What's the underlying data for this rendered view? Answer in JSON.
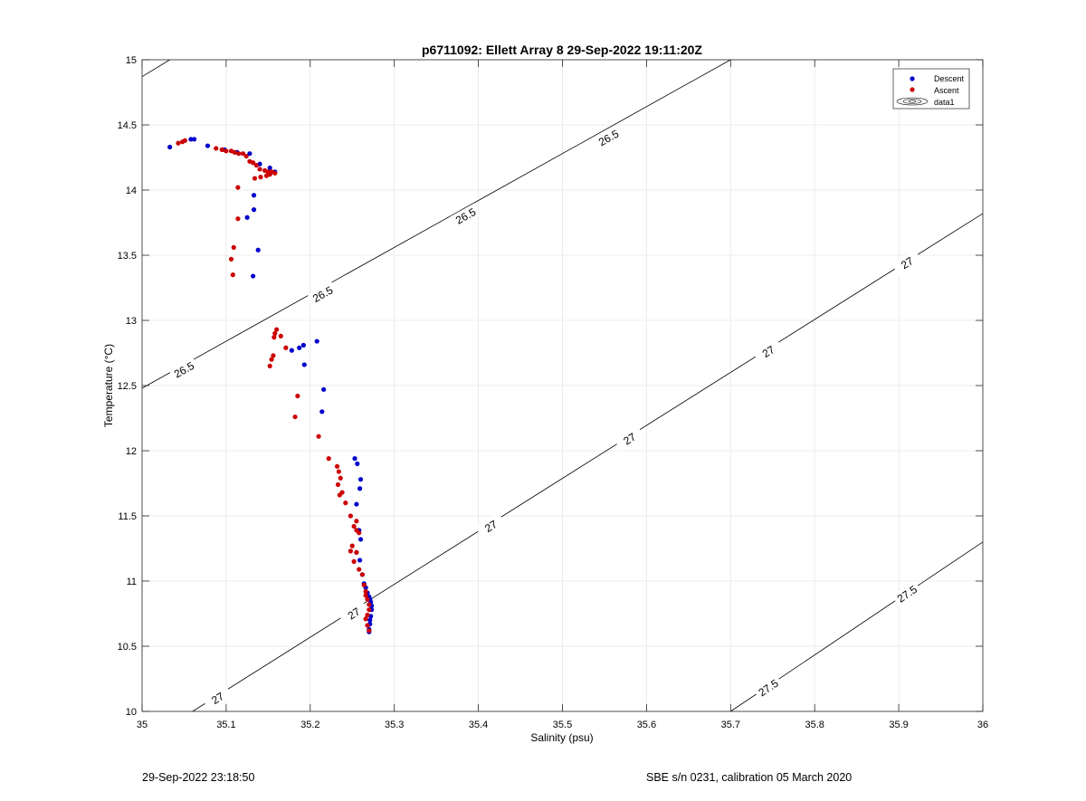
{
  "chart_data": {
    "type": "scatter",
    "title": "p6711092: Ellett Array 8 29-Sep-2022 19:11:20Z",
    "xlabel": "Salinity (psu)",
    "ylabel": "Temperature (°C)",
    "xlim": [
      35,
      36
    ],
    "ylim": [
      10,
      15
    ],
    "xticks": [
      "35",
      "35.1",
      "35.2",
      "35.3",
      "35.4",
      "35.5",
      "35.6",
      "35.7",
      "35.8",
      "35.9",
      "36"
    ],
    "yticks": [
      "10",
      "10.5",
      "11",
      "11.5",
      "12",
      "12.5",
      "13",
      "13.5",
      "14",
      "14.5",
      "15"
    ],
    "grid": true,
    "legend_position": "top-right",
    "series": [
      {
        "name": "Descent",
        "color": "#0000cc",
        "x": [
          35.033,
          35.058,
          35.062,
          35.078,
          35.098,
          35.113,
          35.128,
          35.14,
          35.152,
          35.158,
          35.133,
          35.133,
          35.125,
          35.138,
          35.132,
          35.208,
          35.192,
          35.187,
          35.193,
          35.178,
          35.216,
          35.214,
          35.253,
          35.256,
          35.26,
          35.259,
          35.255,
          35.258,
          35.26,
          35.255,
          35.259,
          35.262,
          35.264,
          35.266,
          35.268,
          35.27,
          35.271,
          35.272,
          35.273,
          35.273,
          35.272,
          35.271,
          35.271,
          35.27,
          35.27
        ],
        "y": [
          14.33,
          14.39,
          14.39,
          14.34,
          14.31,
          14.29,
          14.28,
          14.2,
          14.17,
          14.14,
          13.96,
          13.85,
          13.79,
          13.54,
          13.34,
          12.84,
          12.81,
          12.79,
          12.66,
          12.77,
          12.47,
          12.3,
          11.94,
          11.9,
          11.78,
          11.71,
          11.59,
          11.39,
          11.32,
          11.22,
          11.16,
          11.05,
          10.98,
          10.95,
          10.91,
          10.88,
          10.86,
          10.84,
          10.81,
          10.78,
          10.73,
          10.7,
          10.67,
          10.63,
          10.61
        ]
      },
      {
        "name": "Ascent",
        "color": "#cc0000",
        "x": [
          35.043,
          35.048,
          35.051,
          35.088,
          35.095,
          35.1,
          35.106,
          35.11,
          35.115,
          35.12,
          35.124,
          35.128,
          35.132,
          35.136,
          35.14,
          35.146,
          35.15,
          35.154,
          35.158,
          35.152,
          35.148,
          35.141,
          35.134,
          35.114,
          35.114,
          35.109,
          35.106,
          35.108,
          35.16,
          35.158,
          35.165,
          35.157,
          35.171,
          35.156,
          35.154,
          35.152,
          35.185,
          35.182,
          35.21,
          35.222,
          35.232,
          35.234,
          35.236,
          35.233,
          35.238,
          35.235,
          35.242,
          35.248,
          35.255,
          35.252,
          35.255,
          35.258,
          35.25,
          35.248,
          35.255,
          35.252,
          35.258,
          35.262,
          35.264,
          35.266,
          35.266,
          35.268,
          35.27,
          35.27,
          35.268,
          35.266,
          35.268,
          35.27
        ],
        "y": [
          14.36,
          14.37,
          14.38,
          14.32,
          14.31,
          14.3,
          14.3,
          14.29,
          14.28,
          14.28,
          14.26,
          14.22,
          14.21,
          14.19,
          14.16,
          14.15,
          14.14,
          14.14,
          14.13,
          14.12,
          14.11,
          14.1,
          14.09,
          14.02,
          13.78,
          13.56,
          13.47,
          13.35,
          12.93,
          12.9,
          12.88,
          12.87,
          12.79,
          12.73,
          12.7,
          12.65,
          12.42,
          12.26,
          12.11,
          11.94,
          11.88,
          11.84,
          11.79,
          11.74,
          11.68,
          11.66,
          11.6,
          11.5,
          11.46,
          11.42,
          11.39,
          11.37,
          11.27,
          11.23,
          11.22,
          11.15,
          11.09,
          11.05,
          10.97,
          10.92,
          10.89,
          10.86,
          10.82,
          10.78,
          10.74,
          10.71,
          10.66,
          10.62
        ]
      },
      {
        "name": "data1",
        "type": "contour",
        "contours": [
          {
            "level": "26.5",
            "points": [
              [
                35,
                14.87
              ],
              [
                35.033,
                15
              ],
              [
                35,
                12.48
              ],
              [
                35.7,
                15
              ]
            ],
            "labels": [
              [
                35.05,
                12.62
              ],
              [
                35.215,
                13.2
              ],
              [
                35.385,
                13.8
              ],
              [
                35.555,
                14.4
              ]
            ]
          },
          {
            "level": "27",
            "points": [
              [
                35.06,
                10
              ],
              [
                36,
                13.82
              ]
            ],
            "labels": [
              [
                35.09,
                10.1
              ],
              [
                35.252,
                10.75
              ],
              [
                35.415,
                11.42
              ],
              [
                35.58,
                12.09
              ],
              [
                35.745,
                12.76
              ],
              [
                35.91,
                13.44
              ]
            ]
          },
          {
            "level": "27.5",
            "points": [
              [
                35.7,
                10
              ],
              [
                36,
                11.3
              ]
            ],
            "labels": [
              [
                35.745,
                10.18
              ],
              [
                35.91,
                10.9
              ]
            ]
          }
        ]
      }
    ]
  },
  "footer": {
    "left": "29-Sep-2022 23:18:50",
    "right": "SBE s/n 0231, calibration 05 March 2020"
  }
}
